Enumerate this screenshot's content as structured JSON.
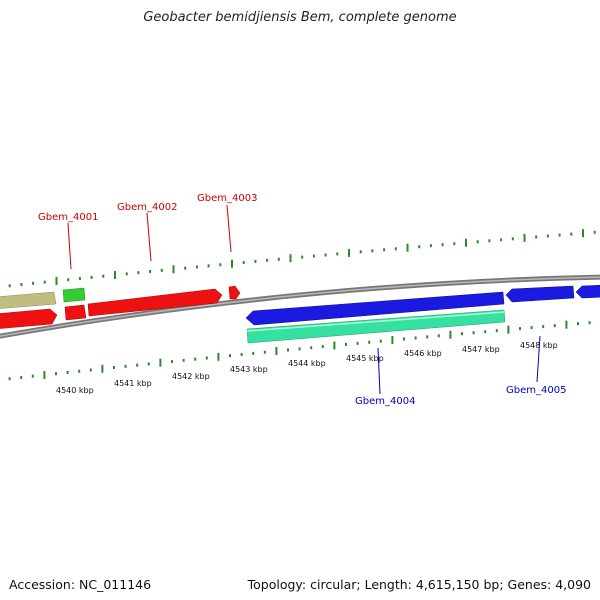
{
  "title": "Geobacter bemidjiensis Bem, complete genome",
  "footer": {
    "accession": "Accession: NC_011146",
    "summary": "Topology: circular; Length: 4,615,150 bp; Genes: 4,090"
  },
  "colors": {
    "forward_gene": "#ee1111",
    "reverse_gene": "#1a1ae0",
    "rna_gene": "#35e0a0",
    "green_gene": "#33cc33",
    "khaki_gene": "#c0bd80",
    "backbone": "#888888",
    "ticks": "#2a8a2a"
  },
  "axis_labels": [
    "4540 kbp",
    "4541 kbp",
    "4542 kbp",
    "4543 kbp",
    "4544 kbp",
    "4545 kbp",
    "4546 kbp",
    "4547 kbp",
    "4548 kbp"
  ],
  "gene_labels": [
    {
      "name": "Gbem_4001",
      "strand": "forward"
    },
    {
      "name": "Gbem_4002",
      "strand": "forward"
    },
    {
      "name": "Gbem_4003",
      "strand": "forward"
    },
    {
      "name": "Gbem_4004",
      "strand": "reverse"
    },
    {
      "name": "Gbem_4005",
      "strand": "reverse"
    }
  ]
}
